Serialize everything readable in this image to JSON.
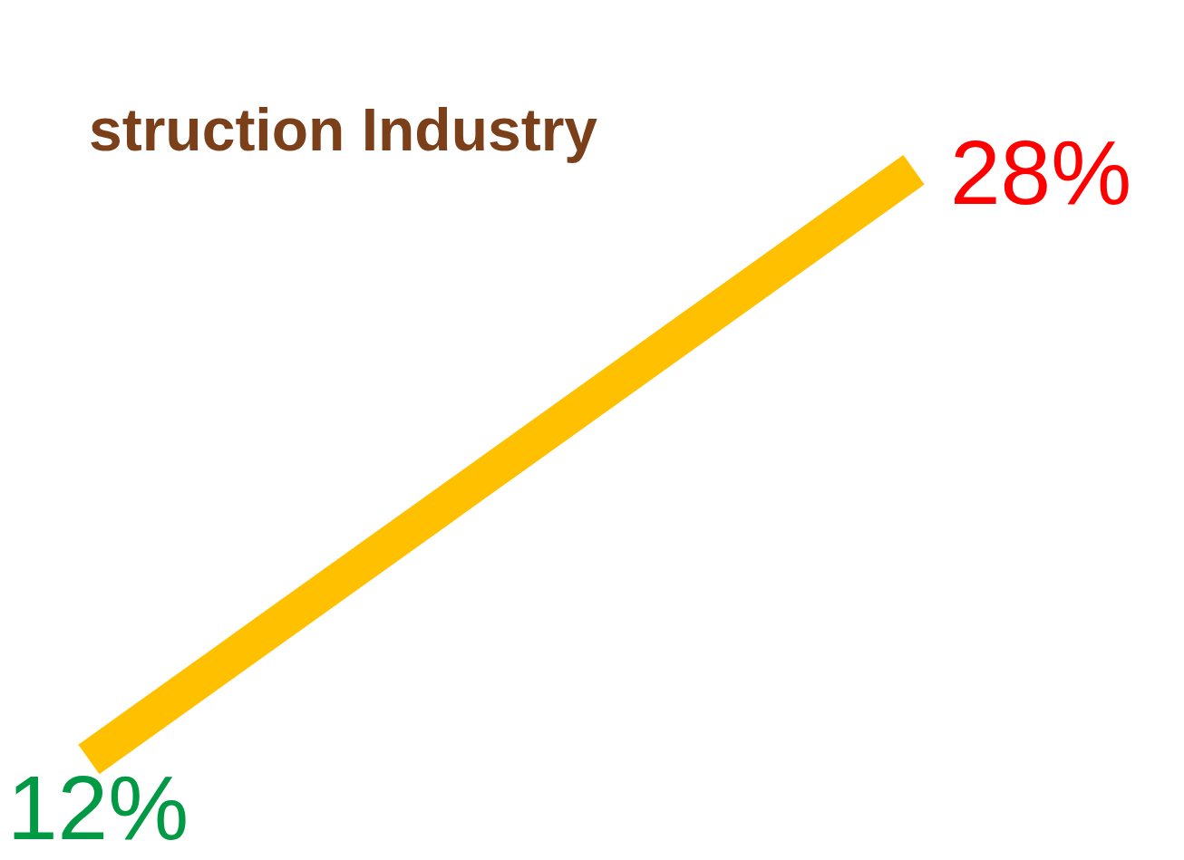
{
  "chart_data": {
    "type": "line",
    "title": "struction Industry",
    "categories": [
      null,
      null
    ],
    "series": [
      {
        "color": "#ffc000",
        "values": [
          12,
          28
        ],
        "value_labels": [
          "12%",
          "28%"
        ]
      }
    ],
    "colors": [
      "#009944",
      "#ff0000"
    ],
    "tick_labels": false,
    "legend": false,
    "marker": "none",
    "line_style": "solid"
  }
}
